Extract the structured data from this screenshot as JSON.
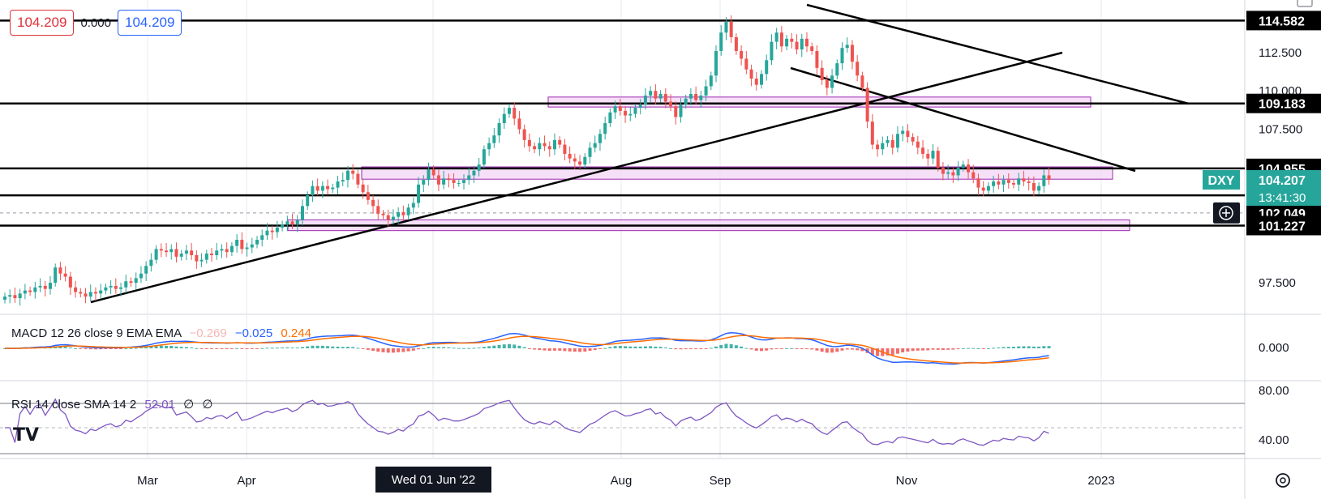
{
  "ohlc": {
    "open": "104.209",
    "change": "0.000",
    "close": "104.209"
  },
  "symbol": "DXY",
  "countdown": "13:41:30",
  "crosshair_date": "Wed 01 Jun '22",
  "macd": {
    "label": "MACD 12 26 close 9 EMA EMA",
    "hist": "−0.269",
    "macd": "−0.025",
    "signal": "0.244"
  },
  "rsi": {
    "label": "RSI 14 close SMA 14 2",
    "value": "52.01",
    "v2": "∅",
    "v3": "∅"
  },
  "colors": {
    "up": "#26a69a",
    "down": "#ef5350",
    "zone_fill": "#f3d6f5",
    "zone_border": "#9c27b0",
    "macd_line": "#2962ff",
    "signal_line": "#ff6d00",
    "rsi_line": "#7e57c2"
  },
  "chart_data": {
    "type": "candlestick",
    "x_ticks": [
      "Mar",
      "Apr",
      "Wed 01 Jun '22",
      "Aug",
      "Sep",
      "Nov",
      "2023"
    ],
    "price_ticks": [
      "114.582",
      "112.500",
      "110.000",
      "109.183",
      "107.500",
      "104.955",
      "104.207",
      "102.049",
      "101.227",
      "97.500"
    ],
    "price_range": [
      95.5,
      115.5
    ],
    "horizontal_levels": [
      114.582,
      109.183,
      104.955,
      103.2,
      101.227
    ],
    "marked_prices": [
      {
        "value": 114.582,
        "label": "114.582"
      },
      {
        "value": 109.183,
        "label": "109.183"
      },
      {
        "value": 104.955,
        "label": "104.955"
      },
      {
        "value": 102.049,
        "label": "102.049"
      },
      {
        "value": 101.227,
        "label": "101.227"
      }
    ],
    "last_price": {
      "value": 104.207,
      "label": "104.207"
    },
    "zones": [
      {
        "low": 108.95,
        "high": 109.6
      },
      {
        "low": 104.25,
        "high": 105.05
      },
      {
        "low": 100.9,
        "high": 101.6
      }
    ],
    "closes": [
      96.6,
      96.7,
      96.5,
      96.8,
      97.0,
      96.9,
      97.2,
      97.3,
      97.1,
      97.5,
      98.5,
      98.1,
      97.9,
      97.2,
      96.9,
      96.8,
      96.6,
      96.9,
      96.8,
      97.0,
      97.2,
      97.3,
      97.1,
      97.2,
      97.6,
      97.5,
      97.8,
      98.1,
      98.6,
      99.0,
      99.7,
      99.6,
      99.5,
      99.7,
      99.2,
      99.4,
      99.6,
      99.3,
      98.9,
      99.0,
      99.4,
      99.3,
      99.6,
      99.7,
      99.5,
      99.9,
      100.3,
      99.7,
      99.8,
      100.0,
      100.3,
      100.6,
      100.9,
      100.8,
      101.1,
      101.3,
      101.5,
      101.3,
      101.6,
      102.5,
      103.2,
      103.8,
      103.5,
      103.8,
      103.6,
      103.7,
      104.1,
      104.2,
      104.8,
      104.6,
      103.9,
      103.4,
      102.9,
      102.5,
      102.0,
      101.9,
      101.6,
      101.8,
      102.1,
      101.9,
      102.4,
      102.7,
      103.9,
      104.2,
      104.9,
      104.5,
      103.9,
      104.3,
      104.2,
      104.0,
      104.0,
      104.2,
      104.5,
      104.8,
      105.2,
      106.2,
      106.6,
      107.1,
      107.9,
      108.5,
      108.9,
      108.2,
      107.5,
      106.8,
      106.4,
      106.2,
      106.6,
      106.4,
      106.2,
      106.8,
      106.5,
      105.9,
      105.6,
      105.4,
      105.2,
      105.7,
      106.3,
      106.6,
      107.2,
      107.9,
      108.6,
      109.0,
      108.7,
      108.4,
      108.5,
      108.9,
      109.1,
      109.7,
      110.0,
      109.5,
      109.8,
      109.3,
      109.0,
      108.3,
      109.1,
      109.5,
      109.8,
      109.4,
      109.7,
      110.3,
      111.0,
      112.6,
      113.8,
      114.5,
      113.5,
      112.6,
      112.1,
      111.4,
      110.8,
      110.4,
      111.1,
      112.0,
      113.2,
      113.8,
      112.9,
      113.4,
      113.2,
      112.7,
      113.4,
      112.9,
      112.6,
      111.5,
      110.7,
      110.2,
      111.0,
      111.8,
      112.8,
      113.0,
      111.9,
      111.0,
      110.2,
      108.0,
      106.5,
      106.2,
      106.6,
      106.8,
      106.3,
      107.2,
      107.4,
      107.0,
      106.7,
      106.3,
      105.9,
      105.6,
      106.1,
      105.0,
      104.6,
      104.7,
      104.5,
      105.0,
      105.2,
      104.7,
      104.3,
      103.7,
      103.5,
      103.8,
      104.1,
      103.9,
      104.2,
      104.0,
      103.9,
      104.3,
      104.1,
      104.0,
      103.5,
      103.8,
      104.5,
      104.2
    ]
  }
}
